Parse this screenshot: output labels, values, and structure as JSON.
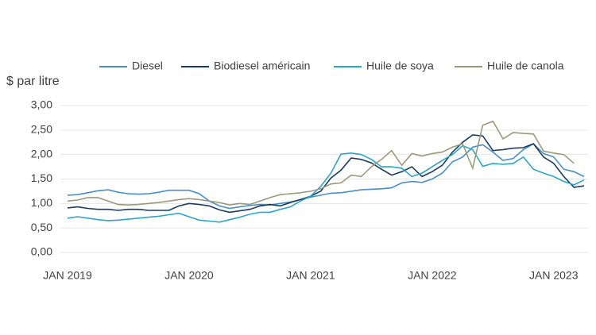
{
  "chart_data": {
    "type": "line",
    "y_label": "$ par litre",
    "x": [
      "2019-01",
      "2019-02",
      "2019-03",
      "2019-04",
      "2019-05",
      "2019-06",
      "2019-07",
      "2019-08",
      "2019-09",
      "2019-10",
      "2019-11",
      "2019-12",
      "2020-01",
      "2020-02",
      "2020-03",
      "2020-04",
      "2020-05",
      "2020-06",
      "2020-07",
      "2020-08",
      "2020-09",
      "2020-10",
      "2020-11",
      "2020-12",
      "2021-01",
      "2021-02",
      "2021-03",
      "2021-04",
      "2021-05",
      "2021-06",
      "2021-07",
      "2021-08",
      "2021-09",
      "2021-10",
      "2021-11",
      "2021-12",
      "2022-01",
      "2022-02",
      "2022-03",
      "2022-04",
      "2022-05",
      "2022-06",
      "2022-07",
      "2022-08",
      "2022-09",
      "2022-10",
      "2022-11",
      "2022-12",
      "2023-01",
      "2023-02",
      "2023-03",
      "2023-04"
    ],
    "series": [
      {
        "name": "Diesel",
        "color": "#4a8ec8",
        "values": [
          1.17,
          1.18,
          1.22,
          1.26,
          1.28,
          1.23,
          1.2,
          1.19,
          1.2,
          1.23,
          1.27,
          1.27,
          1.27,
          1.2,
          1.05,
          0.95,
          0.9,
          0.93,
          0.96,
          0.98,
          0.97,
          1.0,
          1.03,
          1.08,
          1.13,
          1.17,
          1.21,
          1.22,
          1.25,
          1.28,
          1.29,
          1.3,
          1.32,
          1.42,
          1.45,
          1.43,
          1.5,
          1.62,
          1.85,
          1.95,
          2.15,
          2.2,
          2.05,
          1.88,
          1.92,
          2.1,
          2.22,
          2.02,
          1.95,
          1.7,
          1.65,
          1.55
        ]
      },
      {
        "name": "Biodiesel américain",
        "color": "#1b3a5e",
        "values": [
          0.91,
          0.93,
          0.9,
          0.88,
          0.88,
          0.86,
          0.88,
          0.88,
          0.86,
          0.86,
          0.86,
          0.95,
          1.0,
          0.98,
          0.95,
          0.87,
          0.82,
          0.85,
          0.88,
          0.95,
          0.98,
          0.95,
          1.02,
          1.08,
          1.15,
          1.25,
          1.52,
          1.68,
          1.93,
          1.9,
          1.83,
          1.7,
          1.58,
          1.65,
          1.75,
          1.55,
          1.65,
          1.78,
          2.05,
          2.25,
          2.4,
          2.38,
          2.08,
          2.1,
          2.13,
          2.14,
          2.22,
          1.95,
          1.82,
          1.55,
          1.33,
          1.36
        ]
      },
      {
        "name": "Huile de soya",
        "color": "#2aa6c6",
        "values": [
          0.7,
          0.73,
          0.7,
          0.67,
          0.65,
          0.66,
          0.68,
          0.7,
          0.72,
          0.74,
          0.77,
          0.8,
          0.73,
          0.66,
          0.64,
          0.62,
          0.67,
          0.72,
          0.78,
          0.82,
          0.82,
          0.88,
          0.93,
          1.05,
          1.15,
          1.35,
          1.62,
          2.01,
          2.03,
          2.0,
          1.9,
          1.75,
          1.75,
          1.72,
          1.55,
          1.62,
          1.75,
          1.88,
          2.0,
          2.18,
          2.1,
          1.76,
          1.82,
          1.8,
          1.82,
          1.95,
          1.7,
          1.62,
          1.55,
          1.45,
          1.38,
          1.48
        ]
      },
      {
        "name": "Huile de canola",
        "color": "#9a9a7a",
        "values": [
          1.05,
          1.07,
          1.12,
          1.12,
          1.05,
          0.98,
          0.97,
          0.98,
          1.0,
          1.02,
          1.05,
          1.08,
          1.1,
          1.08,
          1.05,
          1.02,
          0.97,
          1.0,
          0.98,
          1.05,
          1.12,
          1.18,
          1.2,
          1.22,
          1.25,
          1.3,
          1.4,
          1.42,
          1.58,
          1.55,
          1.75,
          1.9,
          2.08,
          1.78,
          2.02,
          1.97,
          2.02,
          2.05,
          2.15,
          2.22,
          1.72,
          2.6,
          2.68,
          2.32,
          2.45,
          2.43,
          2.42,
          2.07,
          2.03,
          2.0,
          1.82,
          null
        ]
      }
    ],
    "xlim": [
      "2019-01",
      "2023-04"
    ],
    "xticks": [
      {
        "value": "2019-01",
        "label": "JAN 2019"
      },
      {
        "value": "2020-01",
        "label": "JAN 2020"
      },
      {
        "value": "2021-01",
        "label": "JAN 2021"
      },
      {
        "value": "2022-01",
        "label": "JAN 2022"
      },
      {
        "value": "2023-01",
        "label": "JAN 2023"
      }
    ],
    "ylim": [
      0,
      3
    ],
    "yticks": [
      {
        "value": 0,
        "label": "0,00"
      },
      {
        "value": 0.5,
        "label": "0,50"
      },
      {
        "value": 1,
        "label": "1,00"
      },
      {
        "value": 1.5,
        "label": "1,50"
      },
      {
        "value": 2,
        "label": "2,00"
      },
      {
        "value": 2.5,
        "label": "2,50"
      },
      {
        "value": 3,
        "label": "3,00"
      }
    ],
    "grid": true,
    "legend": "top"
  }
}
